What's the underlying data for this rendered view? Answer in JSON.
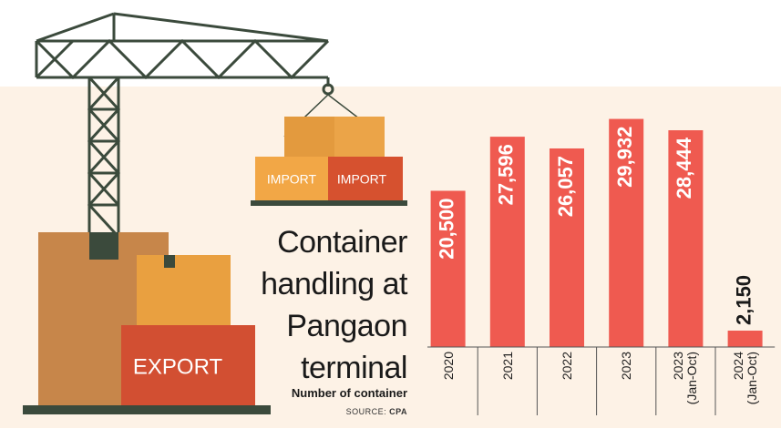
{
  "chart_data": {
    "type": "bar",
    "title": "Container handling at Pangaon terminal",
    "subtitle": "Number of container",
    "source": {
      "prefix": "SOURCE:",
      "name": "CPA"
    },
    "categories": [
      "2020",
      "2021",
      "2022",
      "2023",
      "2023\n(Jan-Oct)",
      "2024\n(Jan-Oct)"
    ],
    "values": [
      20500,
      27596,
      26057,
      29932,
      28444,
      2150
    ],
    "value_labels": [
      "20,500",
      "27,596",
      "26,057",
      "29,932",
      "28,444",
      "2,150"
    ],
    "color": "#ef5a50",
    "ylim": [
      0,
      30000
    ]
  },
  "illustration_labels": [
    "IMPORT",
    "IMPORT",
    "EXPORT"
  ]
}
